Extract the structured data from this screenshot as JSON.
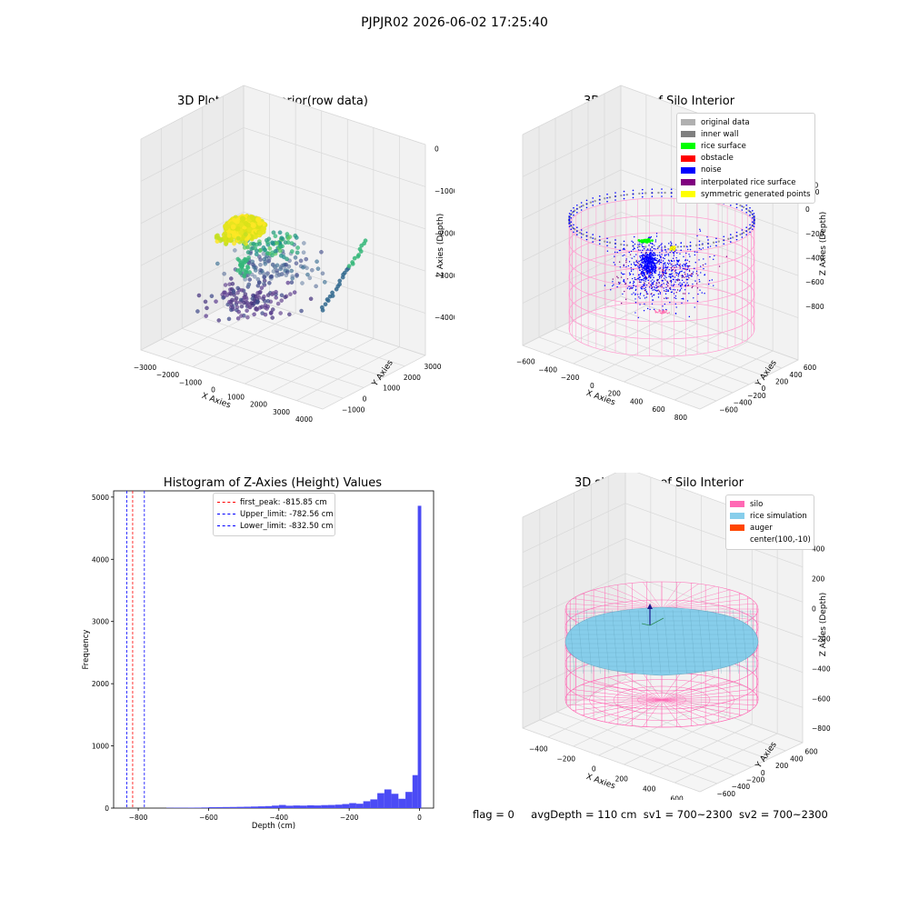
{
  "figure": {
    "suptitle": "PJPJR02 2026-06-02 17:25:40",
    "footer": {
      "flag": "flag = 0",
      "avg_depth": "avgDepth = 110 cm",
      "sv1": "sv1 = 700~2300",
      "sv2": "sv2 = 700~2300"
    }
  },
  "chart_data": [
    {
      "type": "scatter",
      "projection": "3d",
      "title": "3D Plot of Silo Interior(row data)",
      "xlabel": "X Axies",
      "ylabel": "Y Axies",
      "zlabel": "Z Axies (Depth)",
      "x_ticks": [
        "−3000",
        "−2000",
        "−1000",
        "0",
        "1000",
        "2000",
        "3000",
        "4000"
      ],
      "y_ticks": [
        "−1000",
        "0",
        "1000",
        "2000",
        "3000"
      ],
      "z_ticks": [
        "0",
        "−1000",
        "−2000",
        "−3000",
        "−4000"
      ],
      "colormap": "viridis",
      "clusters": [
        {
          "name": "",
          "color": "#e6e41e",
          "z_range": [
            -2200,
            -1300
          ]
        },
        {
          "name": "",
          "color": "#35b779",
          "z_range": [
            -3000,
            -2000
          ]
        },
        {
          "name": "",
          "color": "#3e4989",
          "z_range": [
            -4200,
            -2800
          ]
        },
        {
          "name": "",
          "color": "#5b3c8e",
          "z_range": [
            -4500,
            -3500
          ]
        }
      ]
    },
    {
      "type": "scatter",
      "projection": "3d",
      "title": "3D classify of Silo Interior",
      "xlabel": "X Axies",
      "ylabel": "Y Axies",
      "zlabel": "Z Axies (Depth)",
      "x_ticks": [
        "−600",
        "−400",
        "−200",
        "0",
        "200",
        "400",
        "600",
        "800"
      ],
      "y_ticks": [
        "−600",
        "−400",
        "−200",
        "0",
        "200",
        "400",
        "600"
      ],
      "z_ticks": [
        "200",
        "0",
        "−200",
        "−400",
        "−600",
        "−800"
      ],
      "z_ticks_partial": [
        "00"
      ],
      "legend": [
        {
          "label": "original data",
          "color": "#b0b0b0"
        },
        {
          "label": "inner wall",
          "color": "#808080"
        },
        {
          "label": "rice surface",
          "color": "#00ff00"
        },
        {
          "label": "obstacle",
          "color": "#ff0000"
        },
        {
          "label": "noise",
          "color": "#0000ff"
        },
        {
          "label": "interpolated rice surface",
          "color": "#800080"
        },
        {
          "label": "symmetric generated points",
          "color": "#ffff00"
        }
      ],
      "silo_color": "#ff9ccf"
    },
    {
      "type": "histogram",
      "title": "Histogram of Z-Axies (Height) Values",
      "xlabel": "Depth (cm)",
      "ylabel": "Frequency",
      "xlim": [
        -870,
        40
      ],
      "ylim": [
        0,
        5100
      ],
      "x_ticks": [
        -800,
        -600,
        -400,
        -200,
        0
      ],
      "y_ticks": [
        0,
        1000,
        2000,
        3000,
        4000,
        5000
      ],
      "bar_color": "#4b4bf5",
      "bins": [
        {
          "x0": -720,
          "x1": -700,
          "count": 5
        },
        {
          "x0": -700,
          "x1": -680,
          "count": 6
        },
        {
          "x0": -680,
          "x1": -660,
          "count": 6
        },
        {
          "x0": -660,
          "x1": -640,
          "count": 7
        },
        {
          "x0": -640,
          "x1": -620,
          "count": 8
        },
        {
          "x0": -620,
          "x1": -600,
          "count": 10
        },
        {
          "x0": -600,
          "x1": -580,
          "count": 15
        },
        {
          "x0": -580,
          "x1": -560,
          "count": 16
        },
        {
          "x0": -560,
          "x1": -540,
          "count": 17
        },
        {
          "x0": -540,
          "x1": -520,
          "count": 18
        },
        {
          "x0": -520,
          "x1": -500,
          "count": 20
        },
        {
          "x0": -500,
          "x1": -480,
          "count": 22
        },
        {
          "x0": -480,
          "x1": -460,
          "count": 25
        },
        {
          "x0": -460,
          "x1": -440,
          "count": 28
        },
        {
          "x0": -440,
          "x1": -420,
          "count": 32
        },
        {
          "x0": -420,
          "x1": -400,
          "count": 40
        },
        {
          "x0": -400,
          "x1": -380,
          "count": 50
        },
        {
          "x0": -380,
          "x1": -360,
          "count": 38
        },
        {
          "x0": -360,
          "x1": -340,
          "count": 42
        },
        {
          "x0": -340,
          "x1": -320,
          "count": 40
        },
        {
          "x0": -320,
          "x1": -300,
          "count": 45
        },
        {
          "x0": -300,
          "x1": -280,
          "count": 42
        },
        {
          "x0": -280,
          "x1": -260,
          "count": 48
        },
        {
          "x0": -260,
          "x1": -240,
          "count": 50
        },
        {
          "x0": -240,
          "x1": -220,
          "count": 55
        },
        {
          "x0": -220,
          "x1": -200,
          "count": 65
        },
        {
          "x0": -200,
          "x1": -180,
          "count": 80
        },
        {
          "x0": -180,
          "x1": -160,
          "count": 70
        },
        {
          "x0": -160,
          "x1": -140,
          "count": 110
        },
        {
          "x0": -140,
          "x1": -120,
          "count": 140
        },
        {
          "x0": -120,
          "x1": -100,
          "count": 240
        },
        {
          "x0": -100,
          "x1": -80,
          "count": 300
        },
        {
          "x0": -80,
          "x1": -60,
          "count": 230
        },
        {
          "x0": -60,
          "x1": -40,
          "count": 150
        },
        {
          "x0": -40,
          "x1": -20,
          "count": 260
        },
        {
          "x0": -20,
          "x1": -5,
          "count": 530
        },
        {
          "x0": -5,
          "x1": 5,
          "count": 4860
        }
      ],
      "vlines": [
        {
          "label": "first_peak: -815.85 cm",
          "x": -815.85,
          "color": "#ff0000"
        },
        {
          "label": "Upper_limit: -782.56 cm",
          "x": -782.56,
          "color": "#0000ff"
        },
        {
          "label": "Lower_limit: -832.50 cm",
          "x": -832.5,
          "color": "#0000ff"
        }
      ]
    },
    {
      "type": "surface",
      "projection": "3d",
      "title": "3D simulation of Silo Interior",
      "xlabel": "X Axies",
      "ylabel": "Y Axies",
      "zlabel": "Z Axies (Depth)",
      "x_ticks": [
        "−400",
        "−200",
        "0",
        "200",
        "400",
        "600"
      ],
      "y_ticks": [
        "−600",
        "−400",
        "−200",
        "0",
        "200",
        "400",
        "600"
      ],
      "z_ticks": [
        "400",
        "200",
        "0",
        "−200",
        "−400",
        "−600",
        "−800"
      ],
      "legend": [
        {
          "label": "silo",
          "color": "#ff69b4"
        },
        {
          "label": "rice simulation",
          "color": "#87ceeb"
        },
        {
          "label": "auger",
          "color": "#ff4500"
        },
        {
          "label": "center(100,-10)",
          "color": ""
        }
      ]
    }
  ]
}
